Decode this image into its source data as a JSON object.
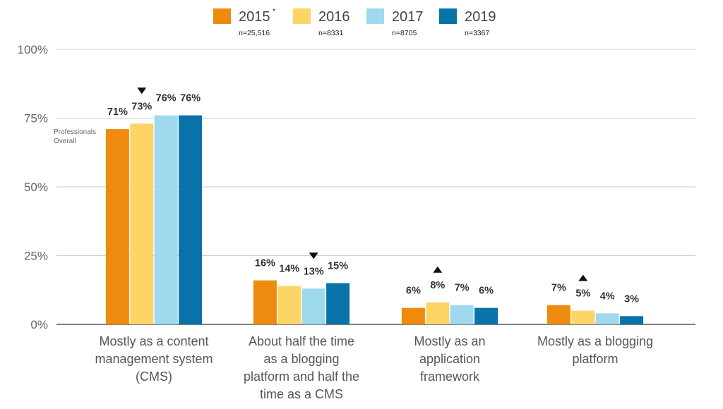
{
  "chart_data": {
    "type": "bar",
    "categories": [
      "Mostly as a content management system (CMS)",
      "About half the time as a blogging platform and half the time as a CMS",
      "Mostly as an application framework",
      "Mostly as a blogging platform"
    ],
    "category_lines": [
      [
        "Mostly as a content",
        "management system",
        "(CMS)"
      ],
      [
        "About half the time",
        "as a blogging",
        "platform and half the",
        "time as a CMS"
      ],
      [
        "Mostly as an",
        "application",
        "framework"
      ],
      [
        "Mostly as a blogging",
        "platform"
      ]
    ],
    "series": [
      {
        "name": "2015",
        "marker": "*",
        "n_label": "n=25,516",
        "color": "#EE8B0E",
        "values": [
          71,
          16,
          6,
          7
        ]
      },
      {
        "name": "2016",
        "n_label": "n=8331",
        "color": "#FDD466",
        "values": [
          73,
          14,
          8,
          5
        ]
      },
      {
        "name": "2017",
        "n_label": "n=8705",
        "color": "#9ED9EE",
        "values": [
          76,
          13,
          7,
          4
        ]
      },
      {
        "name": "2019",
        "n_label": "n=3367",
        "color": "#0872A9",
        "values": [
          76,
          15,
          6,
          3
        ]
      }
    ],
    "value_labels": [
      [
        "71%",
        "73%",
        "76%",
        "76%"
      ],
      [
        "16%",
        "14%",
        "13%",
        "15%"
      ],
      [
        "6%",
        "8%",
        "7%",
        "6%"
      ],
      [
        "7%",
        "5%",
        "4%",
        "3%"
      ]
    ],
    "change_markers": [
      {
        "category": 0,
        "series": 1,
        "direction": "down"
      },
      {
        "category": 1,
        "series": 2,
        "direction": "down"
      },
      {
        "category": 2,
        "series": 1,
        "direction": "up"
      },
      {
        "category": 3,
        "series": 1,
        "direction": "up"
      }
    ],
    "annotation": "Professionals Overall",
    "annotation_lines": [
      "Professionals",
      "Overall"
    ],
    "y_ticks": [
      "0%",
      "25%",
      "50%",
      "75%",
      "100%"
    ],
    "ylim": [
      0,
      100
    ],
    "grid": true,
    "legend_position": "top"
  }
}
